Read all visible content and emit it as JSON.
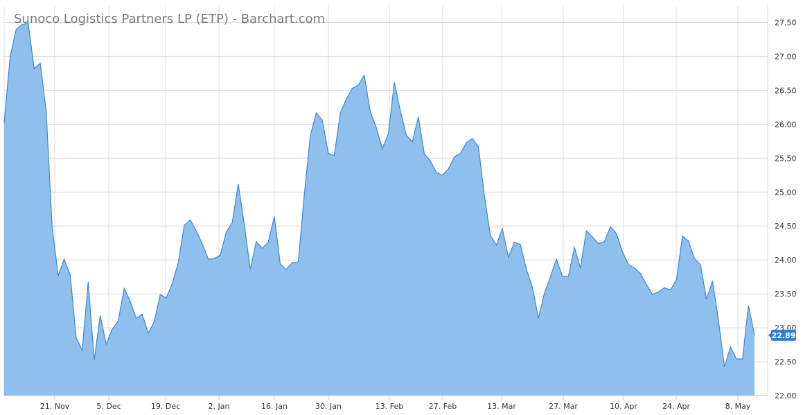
{
  "chart_data": {
    "type": "area",
    "title": "Sunoco Logistics Partners LP (ETP) - Barchart.com",
    "xlabel": "",
    "ylabel": "",
    "ylim": [
      22.0,
      27.75
    ],
    "grid": true,
    "y_axis_position": "right",
    "y_ticks": [
      "27.50",
      "27.00",
      "26.50",
      "26.00",
      "25.50",
      "25.00",
      "24.50",
      "24.00",
      "23.50",
      "23.00",
      "22.50",
      "22.00"
    ],
    "x_ticks": [
      "21. Nov",
      "5. Dec",
      "19. Dec",
      "2. Jan",
      "16. Jan",
      "30. Jan",
      "13. Feb",
      "27. Feb",
      "13. Mar",
      "27. Mar",
      "10. Apr",
      "24. Apr",
      "8. May"
    ],
    "last_price_label": "22.89",
    "colors": {
      "area_fill": "#8fbfec",
      "line": "#3d87d1",
      "price_tag": "#2f7fd4"
    },
    "values": [
      26.02,
      27.0,
      27.4,
      27.47,
      27.49,
      26.82,
      26.9,
      26.2,
      24.48,
      23.77,
      24.01,
      23.78,
      22.85,
      22.67,
      23.68,
      22.52,
      23.18,
      22.76,
      22.98,
      23.1,
      23.58,
      23.39,
      23.14,
      23.2,
      22.92,
      23.09,
      23.49,
      23.44,
      23.65,
      23.96,
      24.51,
      24.59,
      24.43,
      24.24,
      24.01,
      24.02,
      24.07,
      24.41,
      24.55,
      25.12,
      24.52,
      23.86,
      24.27,
      24.17,
      24.26,
      24.64,
      23.94,
      23.86,
      23.96,
      23.97,
      24.96,
      25.83,
      26.17,
      26.06,
      25.57,
      25.54,
      26.17,
      26.37,
      26.53,
      26.58,
      26.72,
      26.18,
      25.95,
      25.64,
      25.86,
      26.62,
      26.2,
      25.84,
      25.74,
      26.11,
      25.56,
      25.46,
      25.29,
      25.25,
      25.34,
      25.52,
      25.57,
      25.73,
      25.79,
      25.67,
      24.95,
      24.36,
      24.22,
      24.46,
      24.04,
      24.26,
      24.23,
      23.86,
      23.6,
      23.14,
      23.51,
      23.75,
      24.01,
      23.76,
      23.76,
      24.19,
      23.88,
      24.43,
      24.34,
      24.24,
      24.27,
      24.49,
      24.39,
      24.12,
      23.93,
      23.88,
      23.8,
      23.64,
      23.49,
      23.53,
      23.59,
      23.56,
      23.71,
      24.35,
      24.28,
      24.02,
      23.93,
      23.42,
      23.69,
      23.11,
      22.42,
      22.72,
      22.54,
      22.54,
      23.33,
      22.89
    ]
  }
}
